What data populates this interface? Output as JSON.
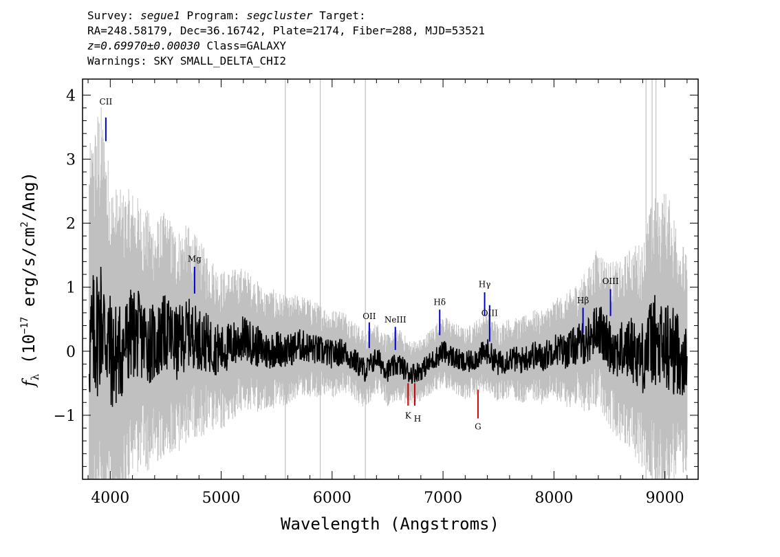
{
  "header": {
    "survey_label": "Survey:",
    "survey": "segue1",
    "program_label": "Program:",
    "program": "segcluster",
    "target_label": "Target:",
    "line2": "RA=248.58179, Dec=36.16742, Plate=2174, Fiber=288, MJD=53521",
    "redshift": "z=0.69970±0.00030",
    "class_text": "Class=GALAXY",
    "warnings": "Warnings: SKY SMALL_DELTA_CHI2"
  },
  "chart_data": {
    "type": "line",
    "title": "",
    "xlabel": "Wavelength (Angstroms)",
    "ylabel": "f_λ (10^-17 erg/s/cm^2/Ang)",
    "xlim": [
      3750,
      9300
    ],
    "ylim": [
      -2.0,
      4.25
    ],
    "x_ticks": [
      4000,
      5000,
      6000,
      7000,
      8000,
      9000
    ],
    "y_ticks": [
      -1,
      0,
      1,
      2,
      3,
      4
    ],
    "x_tick_labels": [
      "4000",
      "5000",
      "6000",
      "7000",
      "8000",
      "9000"
    ],
    "y_tick_labels": [
      "−1",
      "0",
      "1",
      "2",
      "3",
      "4"
    ],
    "grid": false,
    "series": [
      {
        "role": "flux",
        "color": "#000000",
        "x": [
          3820,
          3870,
          3920,
          3970,
          4020,
          4100,
          4200,
          4300,
          4400,
          4500,
          4600,
          4700,
          4800,
          4900,
          5000,
          5100,
          5200,
          5300,
          5400,
          5500,
          5600,
          5700,
          5800,
          5900,
          6000,
          6100,
          6200,
          6300,
          6400,
          6500,
          6600,
          6700,
          6800,
          6900,
          7000,
          7100,
          7200,
          7300,
          7400,
          7500,
          7600,
          7700,
          7800,
          7900,
          8000,
          8100,
          8200,
          8300,
          8400,
          8450,
          8500,
          8600,
          8700,
          8800,
          8850,
          8900,
          8950,
          9000,
          9100,
          9200
        ],
        "y": [
          0.1,
          0.3,
          0.5,
          0.2,
          -0.1,
          0.0,
          0.3,
          0.2,
          0.1,
          0.3,
          0.1,
          0.3,
          0.2,
          0.1,
          0.0,
          0.1,
          0.2,
          0.1,
          0.0,
          0.05,
          0.0,
          0.1,
          0.05,
          0.0,
          -0.05,
          0.0,
          -0.15,
          -0.3,
          -0.1,
          -0.3,
          -0.2,
          -0.35,
          -0.3,
          -0.15,
          0.0,
          -0.1,
          -0.2,
          -0.1,
          0.0,
          -0.2,
          -0.1,
          -0.15,
          -0.05,
          -0.1,
          0.05,
          0.0,
          0.1,
          0.15,
          0.4,
          0.2,
          0.1,
          0.0,
          0.05,
          -0.1,
          0.1,
          0.2,
          0.0,
          0.05,
          0.0,
          -0.2
        ]
      },
      {
        "role": "error",
        "color": "#c0c0c0",
        "x": [
          3800,
          3900,
          4000,
          4200,
          4400,
          4600,
          4800,
          5000,
          5200,
          5400,
          5600,
          5800,
          6000,
          6200,
          6400,
          6600,
          6800,
          7000,
          7200,
          7400,
          7600,
          7800,
          8000,
          8200,
          8400,
          8600,
          8800,
          8900,
          9000,
          9200
        ],
        "y": [
          2.2,
          2.5,
          2.0,
          1.6,
          1.4,
          1.3,
          1.1,
          0.9,
          0.8,
          0.7,
          0.6,
          0.55,
          0.5,
          0.45,
          0.4,
          0.4,
          0.35,
          0.4,
          0.4,
          0.45,
          0.45,
          0.5,
          0.55,
          0.7,
          0.9,
          1.0,
          1.3,
          1.6,
          1.8,
          1.2
        ]
      }
    ],
    "emission_lines": [
      {
        "label": "CII",
        "x": 3960,
        "color": "#0000cc"
      },
      {
        "label": "Mg",
        "x": 4760,
        "color": "#0000cc"
      },
      {
        "label": "OII",
        "x": 6335,
        "color": "#0000cc"
      },
      {
        "label": "NeIII",
        "x": 6570,
        "color": "#0000cc"
      },
      {
        "label": "Hδ",
        "x": 6970,
        "color": "#0000cc"
      },
      {
        "label": "Hγ",
        "x": 7375,
        "color": "#0000cc"
      },
      {
        "label": "OIII",
        "x": 7420,
        "color": "#0000cc"
      },
      {
        "label": "Hβ",
        "x": 8262,
        "color": "#0000cc"
      },
      {
        "label": "OIII",
        "x": 8510,
        "color": "#0000cc"
      }
    ],
    "absorption_lines": [
      {
        "label": "K",
        "x": 6685,
        "color": "#cc0000"
      },
      {
        "label": "H",
        "x": 6745,
        "color": "#cc0000"
      },
      {
        "label": "G",
        "x": 7315,
        "color": "#cc0000"
      }
    ]
  }
}
